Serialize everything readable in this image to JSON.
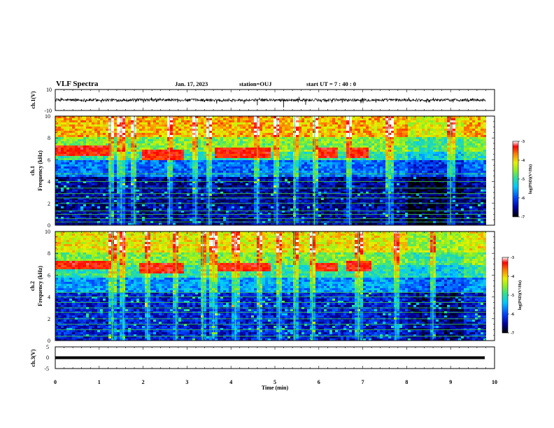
{
  "header": {
    "title": "VLF Spectra",
    "date": "Jan. 17, 2023",
    "station": "station=OUJ",
    "start": "start  UT  =   7 : 40 : 0"
  },
  "chart_data": [
    {
      "type": "line",
      "name": "ch1-waveform",
      "ylabel": "ch.1(V)",
      "ylim": [
        -10,
        10
      ],
      "yticks": [
        "10",
        "-10"
      ],
      "xlim": [
        0,
        10
      ],
      "baseline": 0,
      "spikes": [
        {
          "x": 0.6,
          "y": -1.5
        },
        {
          "x": 1.05,
          "y": -2.5
        },
        {
          "x": 1.4,
          "y": -1.8
        },
        {
          "x": 2.3,
          "y": -2.0
        },
        {
          "x": 3.4,
          "y": -2.0
        },
        {
          "x": 4.3,
          "y": -3.5
        },
        {
          "x": 4.6,
          "y": -5.0
        },
        {
          "x": 5.2,
          "y": -7.0
        },
        {
          "x": 5.55,
          "y": 3.0
        },
        {
          "x": 5.7,
          "y": -4.5
        },
        {
          "x": 6.3,
          "y": -2.5
        },
        {
          "x": 7.3,
          "y": -2.5
        },
        {
          "x": 8.5,
          "y": -2.0
        },
        {
          "x": 9.4,
          "y": -2.0
        }
      ]
    },
    {
      "type": "heatmap",
      "name": "ch1-spectrogram",
      "ylabel": "ch.1",
      "ylabel2": "Frequency (kHz)",
      "ylim": [
        0,
        10
      ],
      "yticks": [
        "0",
        "2",
        "4",
        "6",
        "8",
        "10"
      ],
      "xlim": [
        0,
        10
      ],
      "colorbar": {
        "label": "log(PSD)(V²/Hz)",
        "range": [
          -7,
          -3
        ],
        "ticks": [
          "-3",
          "-4",
          "-5",
          "-6",
          "-7"
        ]
      },
      "bands": [
        {
          "f": [
            8.0,
            10.0
          ],
          "level": 0.78
        },
        {
          "f": [
            6.8,
            8.0
          ],
          "level": 0.6
        },
        {
          "f": [
            6.0,
            6.8
          ],
          "level": 0.5
        },
        {
          "f": [
            4.5,
            6.0
          ],
          "level": 0.3
        },
        {
          "f": [
            0.0,
            4.5
          ],
          "level": 0.12
        }
      ],
      "chorus": [
        {
          "t0": 0.0,
          "t1": 1.3,
          "f": 6.8
        },
        {
          "t0": 2.0,
          "t1": 2.9,
          "f": 6.5
        },
        {
          "t0": 3.6,
          "t1": 4.9,
          "f": 6.6
        },
        {
          "t0": 6.0,
          "t1": 6.4,
          "f": 6.6
        },
        {
          "t0": 6.6,
          "t1": 7.1,
          "f": 6.6
        }
      ],
      "hlines": [
        0.3,
        0.6,
        1.0,
        1.3,
        2.0,
        2.5,
        2.9,
        3.4,
        4.0,
        4.7
      ],
      "vlines": [
        1.25,
        1.5,
        1.8,
        2.6,
        3.2,
        3.5,
        4.6,
        5.05,
        5.45,
        5.9,
        6.7,
        7.6,
        9.0
      ]
    },
    {
      "type": "heatmap",
      "name": "ch2-spectrogram",
      "ylabel": "ch.2",
      "ylabel2": "Frequency (kHz)",
      "ylim": [
        0,
        10
      ],
      "yticks": [
        "0",
        "2",
        "4",
        "6",
        "8",
        "10"
      ],
      "xlim": [
        0,
        10
      ],
      "colorbar": {
        "label": "log(PSD)(V²/Hz)",
        "range": [
          -7,
          -3
        ],
        "ticks": [
          "-3",
          "-4",
          "-5",
          "-6",
          "-7"
        ]
      },
      "bands": [
        {
          "f": [
            8.0,
            10.0
          ],
          "level": 0.72
        },
        {
          "f": [
            7.0,
            8.0
          ],
          "level": 0.6
        },
        {
          "f": [
            5.8,
            7.0
          ],
          "level": 0.5
        },
        {
          "f": [
            4.5,
            5.8
          ],
          "level": 0.35
        },
        {
          "f": [
            0.0,
            4.5
          ],
          "level": 0.18
        }
      ],
      "chorus": [
        {
          "t0": 0.0,
          "t1": 1.3,
          "f": 6.9
        },
        {
          "t0": 1.9,
          "t1": 2.9,
          "f": 6.6
        },
        {
          "t0": 3.7,
          "t1": 4.9,
          "f": 6.7
        },
        {
          "t0": 5.9,
          "t1": 6.4,
          "f": 6.7
        },
        {
          "t0": 6.6,
          "t1": 7.2,
          "f": 6.8
        }
      ],
      "hlines": [
        0.4,
        1.0,
        1.5,
        2.0,
        2.6,
        3.0,
        3.5,
        4.0,
        4.4
      ],
      "vlines": [
        1.3,
        1.55,
        2.1,
        2.75,
        3.35,
        3.6,
        4.1,
        4.65,
        5.1,
        5.45,
        5.85,
        6.9,
        7.75,
        8.6
      ]
    },
    {
      "type": "line",
      "name": "ch3-waveform",
      "ylabel": "ch.3(V)",
      "ylim": [
        -5,
        5
      ],
      "yticks": [
        "5",
        "0",
        "-5"
      ],
      "xlim": [
        0,
        10
      ],
      "baseline": 0
    }
  ],
  "xaxis": {
    "label": "Time (min)",
    "ticks": [
      "0",
      "1",
      "2",
      "3",
      "4",
      "5",
      "6",
      "7",
      "8",
      "9",
      "10"
    ]
  },
  "colors": {
    "colormap": [
      "#000000",
      "#0000a0",
      "#0044ff",
      "#00c8ff",
      "#30e090",
      "#90f020",
      "#e8f000",
      "#ff8000",
      "#ff0000",
      "#ffffff"
    ]
  }
}
